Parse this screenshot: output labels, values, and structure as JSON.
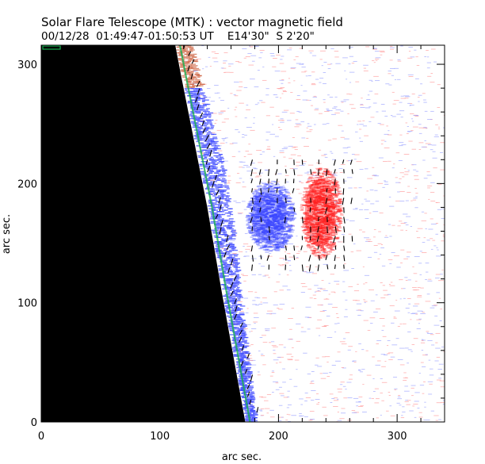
{
  "chart_data": {
    "type": "heatmap",
    "title": "Solar Flare Telescope (MTK) : vector magnetic field",
    "subtitle": "00/12/28  01:49:47-01:50:53 UT    E14'30\"  S 2'20\"",
    "xlabel": "arc sec.",
    "ylabel": "arc sec.",
    "xlim": [
      0,
      340
    ],
    "ylim": [
      0,
      316
    ],
    "x_ticks": [
      0,
      100,
      200,
      300
    ],
    "y_ticks": [
      0,
      100,
      200,
      300
    ],
    "grid": false,
    "legend": "none",
    "colors": {
      "positive_polarity": "#ff2020",
      "negative_polarity": "#3c48ff",
      "off_disk": "#000000",
      "limb_highlight": "#18b050",
      "vectors": "#000000",
      "frame": "#000000"
    },
    "limb": [
      [
        113,
        316
      ],
      [
        118,
        290
      ],
      [
        128,
        240
      ],
      [
        140,
        180
      ],
      [
        152,
        110
      ],
      [
        162,
        55
      ],
      [
        172,
        0
      ]
    ],
    "regions": [
      {
        "name": "negative-spot",
        "polarity": -1,
        "center": [
          192,
          172
        ],
        "radius": [
          20,
          30
        ]
      },
      {
        "name": "positive-spot",
        "polarity": 1,
        "center": [
          235,
          175
        ],
        "radius": [
          17,
          38
        ]
      }
    ]
  }
}
